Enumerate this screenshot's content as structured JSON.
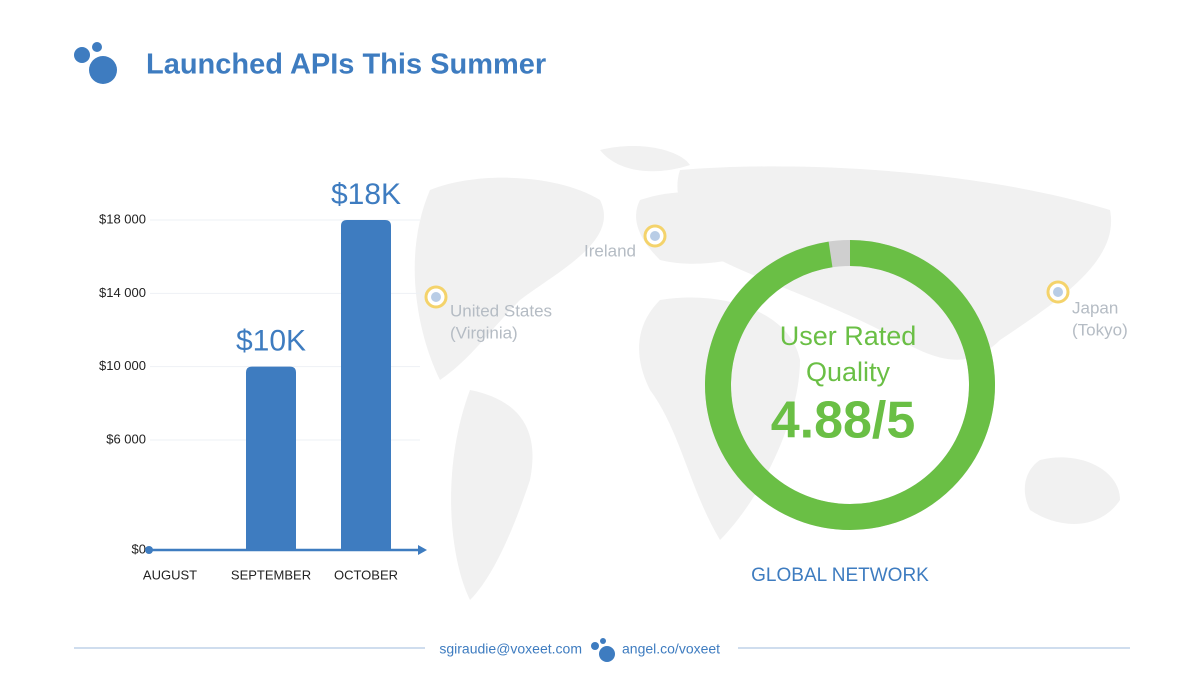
{
  "header": {
    "title": "Launched APIs This Summer"
  },
  "chart_data": [
    {
      "type": "bar",
      "categories": [
        "AUGUST",
        "SEPTEMBER",
        "OCTOBER"
      ],
      "values": [
        0,
        10000,
        18000
      ],
      "value_labels": [
        null,
        "$10K",
        "$18K"
      ],
      "color": "#3e7cc0",
      "ylim": [
        0,
        18000
      ],
      "yticks": [
        {
          "value": 0,
          "label": "$0"
        },
        {
          "value": 6000,
          "label": "$6 000"
        },
        {
          "value": 10000,
          "label": "$10 000"
        },
        {
          "value": 14000,
          "label": "$14 000"
        },
        {
          "value": 18000,
          "label": "$18 000"
        }
      ],
      "grid": true
    },
    {
      "type": "gauge",
      "value": 4.88,
      "max": 5,
      "value_label": "4.88/5",
      "text_lines": [
        "User Rated",
        "Quality"
      ],
      "caption": "GLOBAL NETWORK",
      "color": "#6abf45",
      "track_color": "#cfcfcf"
    }
  ],
  "map_labels": [
    [
      "Ireland"
    ],
    [
      "United States",
      "(Virginia)"
    ],
    [
      "Japan",
      "(Tokyo)"
    ]
  ],
  "footer": {
    "email": "sgiraudie@voxeet.com",
    "link": "angel.co/voxeet"
  }
}
